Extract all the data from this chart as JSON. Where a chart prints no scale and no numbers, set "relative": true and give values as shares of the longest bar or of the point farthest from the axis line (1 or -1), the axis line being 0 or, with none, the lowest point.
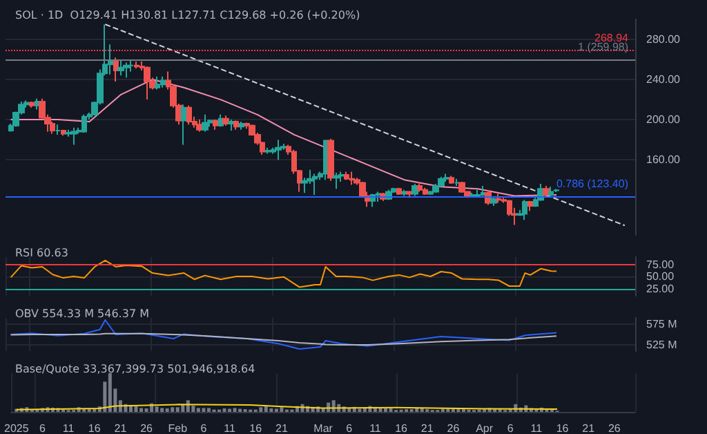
{
  "chart_data": [
    {
      "type": "candlestick",
      "title": "SOL · 1D  O129.41 H130.81 L127.71 C129.68 +0.26 (+0.20%)",
      "tick_labels": "y",
      "grid": "y",
      "xlim": [
        "2024-12-31",
        "2025-04-30"
      ],
      "ylim": [
        85,
        300
      ],
      "yticks": [
        {
          "value": 160,
          "label": "160.00"
        },
        {
          "value": 200,
          "label": "200.00"
        },
        {
          "value": 240,
          "label": "240.00"
        },
        {
          "value": 280,
          "label": "280.00"
        }
      ],
      "x": [
        "2025-01-01",
        "2025-01-02",
        "2025-01-03",
        "2025-01-04",
        "2025-01-05",
        "2025-01-06",
        "2025-01-07",
        "2025-01-08",
        "2025-01-09",
        "2025-01-10",
        "2025-01-11",
        "2025-01-12",
        "2025-01-13",
        "2025-01-14",
        "2025-01-15",
        "2025-01-16",
        "2025-01-17",
        "2025-01-18",
        "2025-01-19",
        "2025-01-20",
        "2025-01-21",
        "2025-01-22",
        "2025-01-23",
        "2025-01-24",
        "2025-01-25",
        "2025-01-26",
        "2025-01-27",
        "2025-01-28",
        "2025-01-29",
        "2025-01-30",
        "2025-01-31",
        "2025-02-01",
        "2025-02-02",
        "2025-02-03",
        "2025-02-04",
        "2025-02-05",
        "2025-02-06",
        "2025-02-07",
        "2025-02-08",
        "2025-02-09",
        "2025-02-10",
        "2025-02-11",
        "2025-02-12",
        "2025-02-13",
        "2025-02-14",
        "2025-02-15",
        "2025-02-16",
        "2025-02-17",
        "2025-02-18",
        "2025-02-19",
        "2025-02-20",
        "2025-02-21",
        "2025-02-22",
        "2025-02-23",
        "2025-02-24",
        "2025-02-25",
        "2025-02-26",
        "2025-02-27",
        "2025-02-28",
        "2025-03-01",
        "2025-03-02",
        "2025-03-03",
        "2025-03-04",
        "2025-03-05",
        "2025-03-06",
        "2025-03-07",
        "2025-03-08",
        "2025-03-09",
        "2025-03-10",
        "2025-03-11",
        "2025-03-12",
        "2025-03-13",
        "2025-03-14",
        "2025-03-15",
        "2025-03-16",
        "2025-03-17",
        "2025-03-18",
        "2025-03-19",
        "2025-03-20",
        "2025-03-21",
        "2025-03-22",
        "2025-03-23",
        "2025-03-24",
        "2025-03-25",
        "2025-03-26",
        "2025-03-27",
        "2025-03-28",
        "2025-03-29",
        "2025-03-30",
        "2025-03-31",
        "2025-04-01",
        "2025-04-02",
        "2025-04-03",
        "2025-04-04",
        "2025-04-05",
        "2025-04-06",
        "2025-04-07",
        "2025-04-08",
        "2025-04-09",
        "2025-04-10",
        "2025-04-11",
        "2025-04-12",
        "2025-04-13",
        "2025-04-14",
        "2025-04-15"
      ],
      "ohlc": [
        [
          189,
          196,
          188,
          194
        ],
        [
          194,
          208,
          193,
          207
        ],
        [
          207,
          218,
          205,
          215
        ],
        [
          215,
          219,
          212,
          217
        ],
        [
          217,
          218,
          212,
          214
        ],
        [
          214,
          221,
          210,
          218
        ],
        [
          218,
          221,
          200,
          202
        ],
        [
          202,
          205,
          188,
          196
        ],
        [
          196,
          198,
          186,
          189
        ],
        [
          189,
          195,
          185,
          189
        ],
        [
          189,
          190,
          184,
          186
        ],
        [
          186,
          190,
          183,
          187
        ],
        [
          186,
          192,
          175,
          188
        ],
        [
          188,
          192,
          186,
          189
        ],
        [
          188,
          205,
          187,
          203
        ],
        [
          203,
          207,
          200,
          205
        ],
        [
          205,
          218,
          204,
          217
        ],
        [
          217,
          250,
          215,
          246
        ],
        [
          246,
          295,
          244,
          255
        ],
        [
          255,
          275,
          245,
          259
        ],
        [
          259,
          262,
          238,
          249
        ],
        [
          249,
          259,
          244,
          252
        ],
        [
          252,
          257,
          242,
          254
        ],
        [
          254,
          260,
          248,
          254
        ],
        [
          254,
          258,
          251,
          253
        ],
        [
          253,
          258,
          249,
          252
        ],
        [
          252,
          253,
          220,
          238
        ],
        [
          238,
          242,
          230,
          232
        ],
        [
          232,
          243,
          230,
          235
        ],
        [
          235,
          243,
          232,
          239
        ],
        [
          239,
          248,
          230,
          233
        ],
        [
          233,
          235,
          212,
          214
        ],
        [
          214,
          216,
          195,
          199
        ],
        [
          199,
          215,
          175,
          212
        ],
        [
          212,
          214,
          195,
          198
        ],
        [
          198,
          203,
          192,
          195
        ],
        [
          195,
          200,
          188,
          190
        ],
        [
          190,
          205,
          188,
          197
        ],
        [
          197,
          200,
          193,
          199
        ],
        [
          199,
          200,
          190,
          194
        ],
        [
          194,
          205,
          193,
          201
        ],
        [
          201,
          204,
          194,
          196
        ],
        [
          196,
          200,
          189,
          198
        ],
        [
          198,
          199,
          190,
          193
        ],
        [
          193,
          198,
          190,
          196
        ],
        [
          196,
          197,
          191,
          194
        ],
        [
          194,
          195,
          184,
          185
        ],
        [
          185,
          187,
          175,
          177
        ],
        [
          177,
          178,
          165,
          168
        ],
        [
          168,
          172,
          166,
          169
        ],
        [
          168,
          172,
          166,
          170
        ],
        [
          170,
          180,
          160,
          172
        ],
        [
          172,
          176,
          170,
          173
        ],
        [
          173,
          175,
          165,
          168
        ],
        [
          168,
          170,
          146,
          149
        ],
        [
          149,
          150,
          128,
          137
        ],
        [
          137,
          142,
          127,
          139
        ],
        [
          139,
          150,
          136,
          141
        ],
        [
          141,
          146,
          125,
          143
        ],
        [
          143,
          148,
          140,
          146
        ],
        [
          146,
          180,
          140,
          179
        ],
        [
          179,
          181,
          139,
          142
        ],
        [
          142,
          147,
          131,
          144
        ],
        [
          144,
          148,
          138,
          145
        ],
        [
          145,
          148,
          140,
          141
        ],
        [
          141,
          148,
          135,
          140
        ],
        [
          140,
          142,
          135,
          137
        ],
        [
          137,
          138,
          122,
          124
        ],
        [
          124,
          128,
          113,
          119
        ],
        [
          119,
          126,
          113,
          125
        ],
        [
          125,
          128,
          118,
          126
        ],
        [
          126,
          127,
          119,
          121
        ],
        [
          121,
          130,
          120,
          128
        ],
        [
          128,
          132,
          127,
          131
        ],
        [
          131,
          132,
          125,
          126
        ],
        [
          126,
          130,
          124,
          128
        ],
        [
          128,
          129,
          122,
          126
        ],
        [
          126,
          136,
          124,
          134
        ],
        [
          134,
          138,
          128,
          130
        ],
        [
          130,
          132,
          125,
          126
        ],
        [
          126,
          129,
          125,
          128
        ],
        [
          128,
          136,
          127,
          134
        ],
        [
          134,
          143,
          133,
          141
        ],
        [
          141,
          146,
          138,
          142
        ],
        [
          142,
          144,
          136,
          137
        ],
        [
          137,
          141,
          134,
          137
        ],
        [
          137,
          138,
          127,
          128
        ],
        [
          128,
          129,
          122,
          124
        ],
        [
          124,
          127,
          123,
          125
        ],
        [
          124,
          130,
          123,
          125
        ],
        [
          125,
          134,
          124,
          127
        ],
        [
          127,
          130,
          115,
          117
        ],
        [
          117,
          122,
          114,
          121
        ],
        [
          121,
          126,
          117,
          120
        ],
        [
          120,
          122,
          117,
          119
        ],
        [
          119,
          120,
          104,
          106
        ],
        [
          106,
          112,
          95,
          105
        ],
        [
          105,
          110,
          104,
          106
        ],
        [
          106,
          120,
          100,
          118
        ],
        [
          118,
          119,
          109,
          114
        ],
        [
          114,
          122,
          113,
          120
        ],
        [
          120,
          136,
          119,
          131
        ],
        [
          131,
          134,
          124,
          125
        ],
        [
          125,
          133,
          124,
          128
        ],
        [
          129.41,
          130.81,
          127.71,
          129.68
        ]
      ],
      "series": [
        {
          "type": "line",
          "color": "#f48fb1",
          "x": [
            "2025-01-01",
            "2025-01-10",
            "2025-01-16",
            "2025-01-22",
            "2025-01-28",
            "2025-02-03",
            "2025-02-10",
            "2025-02-17",
            "2025-02-24",
            "2025-03-03",
            "2025-03-10",
            "2025-03-17",
            "2025-03-24",
            "2025-03-31",
            "2025-04-07",
            "2025-04-15"
          ],
          "values": [
            200,
            200,
            198,
            225,
            240,
            232,
            220,
            205,
            185,
            170,
            155,
            140,
            133,
            131,
            124,
            125
          ]
        },
        {
          "type": "line",
          "color": "#d1d4dc",
          "line_style": "dashed",
          "x": [
            "2025-01-19",
            "2025-04-28"
          ],
          "values": [
            295,
            94.5
          ]
        }
      ],
      "ref_lines": [
        {
          "axis": "y",
          "value": 268.94,
          "label": "268.94",
          "color": "#f23645",
          "line_style": "dotted"
        },
        {
          "axis": "y",
          "value": 259.98,
          "label": "1 (259.98)",
          "color": "#787b86",
          "line_style": "solid"
        },
        {
          "axis": "y",
          "value": 123.4,
          "label": "0.786 (123.40)",
          "color": "#2962ff",
          "line_style": "solid"
        }
      ]
    },
    {
      "type": "line",
      "title": "RSI 60.63",
      "tick_labels": "y",
      "grid": true,
      "xlim": [
        "2024-12-31",
        "2025-04-30"
      ],
      "ylim": [
        10,
        90
      ],
      "yticks": [
        {
          "value": 25,
          "label": "25.00"
        },
        {
          "value": 50,
          "label": "50.00"
        },
        {
          "value": 75,
          "label": "75.00"
        }
      ],
      "x": [
        "2025-01-01",
        "2025-01-03",
        "2025-01-05",
        "2025-01-07",
        "2025-01-09",
        "2025-01-11",
        "2025-01-13",
        "2025-01-15",
        "2025-01-17",
        "2025-01-19",
        "2025-01-21",
        "2025-01-23",
        "2025-01-26",
        "2025-01-28",
        "2025-01-31",
        "2025-02-03",
        "2025-02-05",
        "2025-02-07",
        "2025-02-10",
        "2025-02-13",
        "2025-02-16",
        "2025-02-19",
        "2025-02-22",
        "2025-02-25",
        "2025-02-28",
        "2025-03-01",
        "2025-03-02",
        "2025-03-04",
        "2025-03-06",
        "2025-03-09",
        "2025-03-11",
        "2025-03-14",
        "2025-03-16",
        "2025-03-18",
        "2025-03-20",
        "2025-03-22",
        "2025-03-24",
        "2025-03-26",
        "2025-03-28",
        "2025-03-31",
        "2025-04-02",
        "2025-04-04",
        "2025-04-06",
        "2025-04-08",
        "2025-04-09",
        "2025-04-10",
        "2025-04-12",
        "2025-04-14",
        "2025-04-15"
      ],
      "series": [
        {
          "color": "#ff9800",
          "values": [
            48,
            72,
            68,
            70,
            54,
            47,
            50,
            47,
            70,
            83,
            70,
            73,
            71,
            57,
            52,
            57,
            44,
            52,
            44,
            50,
            50,
            45,
            49,
            28,
            33,
            33,
            70,
            50,
            50,
            48,
            42,
            50,
            53,
            48,
            55,
            50,
            60,
            57,
            45,
            44,
            44,
            42,
            30,
            30,
            57,
            53,
            66,
            61,
            60.63
          ]
        }
      ],
      "ref_lines": [
        {
          "axis": "y",
          "value": 75,
          "color": "#f23645",
          "line_style": "solid"
        },
        {
          "axis": "y",
          "value": 25,
          "color": "#22ab94",
          "line_style": "solid"
        }
      ]
    },
    {
      "type": "line",
      "title": "OBV 554.33 M 546.37 M",
      "tick_labels": "y",
      "grid": true,
      "xlim": [
        "2024-12-31",
        "2025-04-30"
      ],
      "ylim": [
        510,
        590
      ],
      "yticks": [
        {
          "value": 525,
          "label": "525 M"
        },
        {
          "value": 575,
          "label": "575 M"
        }
      ],
      "x": [
        "2025-01-01",
        "2025-01-05",
        "2025-01-10",
        "2025-01-15",
        "2025-01-18",
        "2025-01-19",
        "2025-01-21",
        "2025-01-26",
        "2025-02-01",
        "2025-02-03",
        "2025-02-08",
        "2025-02-15",
        "2025-02-21",
        "2025-02-25",
        "2025-03-01",
        "2025-03-02",
        "2025-03-05",
        "2025-03-10",
        "2025-03-16",
        "2025-03-24",
        "2025-03-31",
        "2025-04-06",
        "2025-04-09",
        "2025-04-15"
      ],
      "series": [
        {
          "color": "#2962ff",
          "values": [
            550,
            553,
            547,
            552,
            562,
            585,
            550,
            553,
            540,
            551,
            545,
            540,
            528,
            515,
            520,
            535,
            528,
            522,
            532,
            545,
            540,
            536,
            548,
            554.33
          ]
        },
        {
          "color": "#b2b5be",
          "values": [
            549,
            550,
            550,
            550,
            551,
            552,
            552,
            552,
            550,
            549,
            546,
            540,
            535,
            530,
            527,
            526,
            525,
            525,
            528,
            533,
            536,
            538,
            541,
            546.37
          ]
        }
      ]
    },
    {
      "type": "bar",
      "title": "Base/Quote 33,367,399.73 501,946,918.64",
      "tick_labels": "x",
      "relative": true,
      "grid": true,
      "xlim": [
        "2024-12-31",
        "2025-04-30"
      ],
      "xticks": [
        {
          "value": "2025-01-01",
          "label": "2025"
        },
        {
          "value": "2025-01-06",
          "label": "6"
        },
        {
          "value": "2025-01-11",
          "label": "11"
        },
        {
          "value": "2025-01-16",
          "label": "16"
        },
        {
          "value": "2025-01-21",
          "label": "21"
        },
        {
          "value": "2025-01-26",
          "label": "26"
        },
        {
          "value": "2025-02-01",
          "label": "Feb"
        },
        {
          "value": "2025-02-06",
          "label": "6"
        },
        {
          "value": "2025-02-11",
          "label": "11"
        },
        {
          "value": "2025-02-16",
          "label": "16"
        },
        {
          "value": "2025-02-21",
          "label": "21"
        },
        {
          "value": "2025-03-01",
          "label": "Mar"
        },
        {
          "value": "2025-03-06",
          "label": "6"
        },
        {
          "value": "2025-03-11",
          "label": "11"
        },
        {
          "value": "2025-03-16",
          "label": "16"
        },
        {
          "value": "2025-03-21",
          "label": "21"
        },
        {
          "value": "2025-03-26",
          "label": "26"
        },
        {
          "value": "2025-04-01",
          "label": "Apr"
        },
        {
          "value": "2025-04-06",
          "label": "6"
        },
        {
          "value": "2025-04-11",
          "label": "11"
        },
        {
          "value": "2025-04-16",
          "label": "16"
        },
        {
          "value": "2025-04-21",
          "label": "21"
        },
        {
          "value": "2025-04-26",
          "label": "26"
        }
      ],
      "x": [
        "2025-01-01",
        "2025-01-02",
        "2025-01-03",
        "2025-01-04",
        "2025-01-05",
        "2025-01-06",
        "2025-01-07",
        "2025-01-08",
        "2025-01-09",
        "2025-01-10",
        "2025-01-11",
        "2025-01-12",
        "2025-01-13",
        "2025-01-14",
        "2025-01-15",
        "2025-01-16",
        "2025-01-17",
        "2025-01-18",
        "2025-01-19",
        "2025-01-20",
        "2025-01-21",
        "2025-01-22",
        "2025-01-23",
        "2025-01-24",
        "2025-01-25",
        "2025-01-26",
        "2025-01-27",
        "2025-01-28",
        "2025-01-29",
        "2025-01-30",
        "2025-01-31",
        "2025-02-01",
        "2025-02-02",
        "2025-02-03",
        "2025-02-04",
        "2025-02-05",
        "2025-02-06",
        "2025-02-07",
        "2025-02-08",
        "2025-02-09",
        "2025-02-10",
        "2025-02-11",
        "2025-02-12",
        "2025-02-13",
        "2025-02-14",
        "2025-02-15",
        "2025-02-16",
        "2025-02-17",
        "2025-02-18",
        "2025-02-19",
        "2025-02-20",
        "2025-02-21",
        "2025-02-22",
        "2025-02-23",
        "2025-02-24",
        "2025-02-25",
        "2025-02-26",
        "2025-02-27",
        "2025-02-28",
        "2025-03-01",
        "2025-03-02",
        "2025-03-03",
        "2025-03-04",
        "2025-03-05",
        "2025-03-06",
        "2025-03-07",
        "2025-03-08",
        "2025-03-09",
        "2025-03-10",
        "2025-03-11",
        "2025-03-12",
        "2025-03-13",
        "2025-03-14",
        "2025-03-15",
        "2025-03-16",
        "2025-03-17",
        "2025-03-18",
        "2025-03-19",
        "2025-03-20",
        "2025-03-21",
        "2025-03-22",
        "2025-03-23",
        "2025-03-24",
        "2025-03-25",
        "2025-03-26",
        "2025-03-27",
        "2025-03-28",
        "2025-03-29",
        "2025-03-30",
        "2025-03-31",
        "2025-04-01",
        "2025-04-02",
        "2025-04-03",
        "2025-04-04",
        "2025-04-05",
        "2025-04-06",
        "2025-04-07",
        "2025-04-08",
        "2025-04-09",
        "2025-04-10",
        "2025-04-11",
        "2025-04-12",
        "2025-04-13",
        "2025-04-14",
        "2025-04-15"
      ],
      "series": [
        {
          "color": "#787b86",
          "values": [
            0.08,
            0.1,
            0.12,
            0.07,
            0.06,
            0.1,
            0.12,
            0.11,
            0.1,
            0.09,
            0.05,
            0.05,
            0.12,
            0.08,
            0.09,
            0.08,
            0.14,
            0.78,
            1,
            0.6,
            0.3,
            0.2,
            0.18,
            0.15,
            0.1,
            0.09,
            0.22,
            0.14,
            0.1,
            0.09,
            0.12,
            0.12,
            0.2,
            0.3,
            0.16,
            0.1,
            0.1,
            0.1,
            0.06,
            0.06,
            0.09,
            0.08,
            0.1,
            0.08,
            0.07,
            0.06,
            0.06,
            0.12,
            0.14,
            0.09,
            0.08,
            0.12,
            0.06,
            0.06,
            0.15,
            0.2,
            0.15,
            0.13,
            0.14,
            0.1,
            0.24,
            0.3,
            0.2,
            0.14,
            0.1,
            0.13,
            0.08,
            0.12,
            0.15,
            0.13,
            0.1,
            0.09,
            0.09,
            0.05,
            0.06,
            0.07,
            0.07,
            0.09,
            0.1,
            0.07,
            0.05,
            0.05,
            0.08,
            0.08,
            0.08,
            0.07,
            0.08,
            0.06,
            0.05,
            0.06,
            0.07,
            0.1,
            0.09,
            0.08,
            0.05,
            0.09,
            0.2,
            0.11,
            0.17,
            0.1,
            0.08,
            0.11,
            0.08,
            0.08,
            0.03
          ]
        },
        {
          "type": "line",
          "color": "#f7d61a",
          "x": [
            "2025-01-01",
            "2025-01-17",
            "2025-01-20",
            "2025-02-01",
            "2025-02-15",
            "2025-02-21",
            "2025-03-01",
            "2025-03-15",
            "2025-04-01",
            "2025-04-15"
          ],
          "values": [
            0.06,
            0.09,
            0.15,
            0.19,
            0.18,
            0.14,
            0.1,
            0.11,
            0.08,
            0.07
          ]
        }
      ]
    }
  ]
}
